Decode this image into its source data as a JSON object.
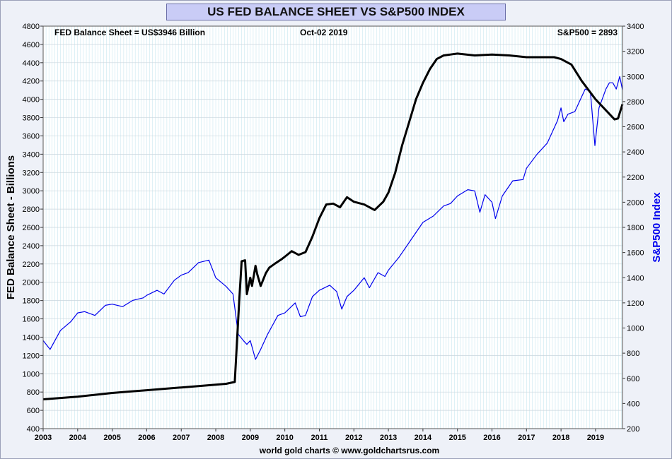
{
  "title": "US FED BALANCE SHEET VS S&P500 INDEX",
  "footer": "world gold charts © www.goldchartsrus.com",
  "header": {
    "left": "FED Balance Sheet = US$3946 Billion",
    "center": "Oct-02  2019",
    "right": "S&P500 = 2893"
  },
  "colors": {
    "fed": "#000000",
    "spx": "#0000ee",
    "grid": "#bfe3ee",
    "plot_bg": "#ffffff",
    "title_bg": "#c9ccf6"
  },
  "chart_data": {
    "type": "line",
    "title": "US FED BALANCE SHEET VS S&P500 INDEX",
    "xlabel": "",
    "ylabel_left": "FED Balance Sheet - Billions",
    "ylabel_right": "S&P500 Index",
    "xlim": [
      2003.0,
      2019.78
    ],
    "ylim_left": [
      400,
      4800
    ],
    "ylim_right": [
      200,
      3400
    ],
    "x_ticks": [
      "2003",
      "2004",
      "2005",
      "2006",
      "2007",
      "2008",
      "2009",
      "2010",
      "2011",
      "2012",
      "2013",
      "2014",
      "2015",
      "2016",
      "2017",
      "2018",
      "2019"
    ],
    "y_ticks_left": [
      400,
      600,
      800,
      1000,
      1200,
      1400,
      1600,
      1800,
      2000,
      2200,
      2400,
      2600,
      2800,
      3000,
      3200,
      3400,
      3600,
      3800,
      4000,
      4200,
      4400,
      4600,
      4800
    ],
    "y_ticks_right": [
      200,
      400,
      600,
      800,
      1000,
      1200,
      1400,
      1600,
      1800,
      2000,
      2200,
      2400,
      2600,
      2800,
      3000,
      3200,
      3400
    ],
    "grid": true,
    "series": [
      {
        "name": "FED Balance Sheet",
        "axis": "left",
        "x": [
          2003.0,
          2003.5,
          2004.0,
          2004.5,
          2005.0,
          2005.5,
          2006.0,
          2006.5,
          2007.0,
          2007.5,
          2008.0,
          2008.3,
          2008.55,
          2008.68,
          2008.75,
          2008.85,
          2008.9,
          2009.0,
          2009.05,
          2009.15,
          2009.2,
          2009.3,
          2009.45,
          2009.55,
          2009.7,
          2009.9,
          2010.0,
          2010.2,
          2010.4,
          2010.6,
          2010.8,
          2011.0,
          2011.2,
          2011.4,
          2011.6,
          2011.8,
          2012.0,
          2012.3,
          2012.6,
          2012.85,
          2013.0,
          2013.2,
          2013.4,
          2013.6,
          2013.8,
          2014.0,
          2014.2,
          2014.4,
          2014.6,
          2014.8,
          2015.0,
          2015.5,
          2016.0,
          2016.5,
          2017.0,
          2017.5,
          2017.8,
          2018.0,
          2018.3,
          2018.6,
          2019.0,
          2019.3,
          2019.55,
          2019.65,
          2019.78
        ],
        "y": [
          720,
          735,
          750,
          770,
          790,
          805,
          820,
          835,
          850,
          865,
          880,
          890,
          910,
          1800,
          2230,
          2240,
          1870,
          2050,
          1960,
          2180,
          2090,
          1960,
          2100,
          2160,
          2200,
          2250,
          2280,
          2340,
          2300,
          2330,
          2500,
          2700,
          2850,
          2860,
          2820,
          2930,
          2880,
          2850,
          2790,
          2880,
          2980,
          3200,
          3500,
          3750,
          4000,
          4180,
          4330,
          4440,
          4480,
          4490,
          4500,
          4480,
          4490,
          4480,
          4460,
          4460,
          4460,
          4440,
          4380,
          4200,
          4000,
          3880,
          3780,
          3790,
          3946
        ]
      },
      {
        "name": "S&P500 Index",
        "axis": "right",
        "x": [
          2003.0,
          2003.2,
          2003.5,
          2003.8,
          2004.0,
          2004.2,
          2004.5,
          2004.8,
          2005.0,
          2005.3,
          2005.6,
          2005.9,
          2006.0,
          2006.3,
          2006.5,
          2006.8,
          2007.0,
          2007.2,
          2007.5,
          2007.8,
          2008.0,
          2008.3,
          2008.5,
          2008.65,
          2008.8,
          2008.9,
          2009.0,
          2009.15,
          2009.3,
          2009.5,
          2009.8,
          2010.0,
          2010.3,
          2010.45,
          2010.6,
          2010.8,
          2011.0,
          2011.3,
          2011.5,
          2011.65,
          2011.8,
          2012.0,
          2012.3,
          2012.45,
          2012.7,
          2012.9,
          2013.0,
          2013.3,
          2013.6,
          2013.9,
          2014.0,
          2014.3,
          2014.6,
          2014.8,
          2015.0,
          2015.3,
          2015.5,
          2015.65,
          2015.8,
          2016.0,
          2016.1,
          2016.3,
          2016.6,
          2016.9,
          2017.0,
          2017.3,
          2017.6,
          2017.9,
          2018.0,
          2018.08,
          2018.2,
          2018.4,
          2018.7,
          2018.85,
          2018.98,
          2019.1,
          2019.3,
          2019.4,
          2019.5,
          2019.6,
          2019.7,
          2019.78
        ],
        "y": [
          900,
          830,
          980,
          1050,
          1120,
          1130,
          1100,
          1180,
          1190,
          1170,
          1220,
          1240,
          1260,
          1300,
          1270,
          1380,
          1420,
          1440,
          1520,
          1540,
          1400,
          1330,
          1270,
          950,
          900,
          870,
          900,
          750,
          830,
          950,
          1100,
          1120,
          1200,
          1090,
          1100,
          1250,
          1300,
          1340,
          1290,
          1150,
          1250,
          1300,
          1400,
          1320,
          1440,
          1410,
          1460,
          1560,
          1680,
          1800,
          1840,
          1890,
          1970,
          1990,
          2050,
          2100,
          2090,
          1920,
          2060,
          2000,
          1870,
          2050,
          2170,
          2180,
          2270,
          2380,
          2470,
          2650,
          2750,
          2640,
          2700,
          2720,
          2900,
          2880,
          2450,
          2750,
          2900,
          2950,
          2950,
          2900,
          3000,
          2893
        ]
      }
    ]
  }
}
